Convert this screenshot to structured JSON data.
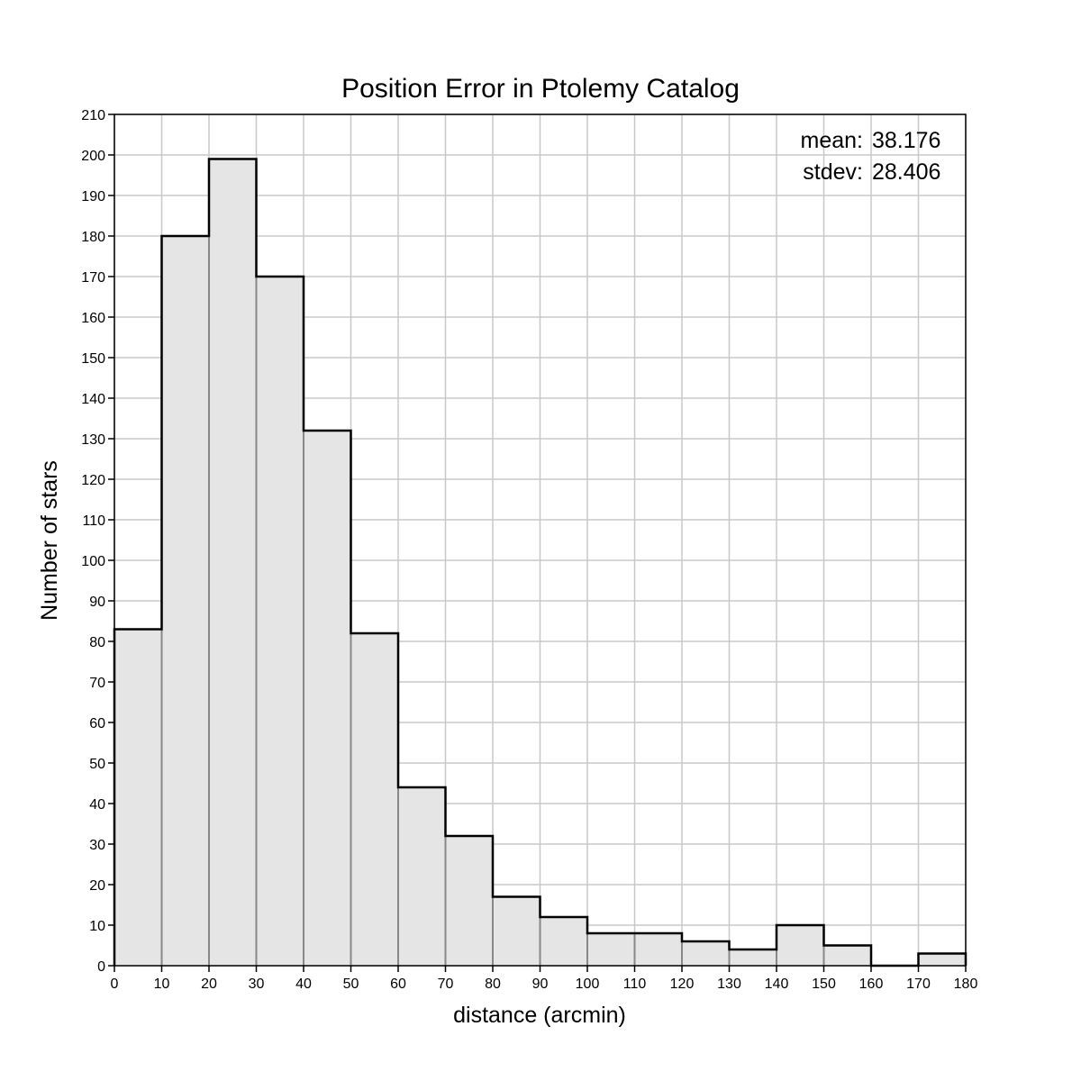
{
  "chart_data": {
    "type": "bar",
    "title": "Position Error in Ptolemy Catalog",
    "xlabel": "distance (arcmin)",
    "ylabel": "Number of stars",
    "xlim": [
      0,
      180
    ],
    "ylim": [
      0,
      210
    ],
    "bin_width": 10,
    "bins": [
      0,
      10,
      20,
      30,
      40,
      50,
      60,
      70,
      80,
      90,
      100,
      110,
      120,
      130,
      140,
      150,
      160,
      170
    ],
    "values": [
      83,
      180,
      199,
      170,
      132,
      82,
      44,
      32,
      17,
      12,
      8,
      8,
      6,
      4,
      10,
      5,
      0,
      3
    ],
    "x_ticks": [
      "0",
      "10",
      "20",
      "30",
      "40",
      "50",
      "60",
      "70",
      "80",
      "90",
      "100",
      "110",
      "120",
      "130",
      "140",
      "150",
      "160",
      "170",
      "180"
    ],
    "y_ticks": [
      "0",
      "10",
      "20",
      "30",
      "40",
      "50",
      "60",
      "70",
      "80",
      "90",
      "100",
      "110",
      "120",
      "130",
      "140",
      "150",
      "160",
      "170",
      "180",
      "190",
      "200",
      "210"
    ],
    "grid": true,
    "legend": "none",
    "annotations": {
      "mean_label": "mean:",
      "mean_value": "38.176",
      "stdev_label": "stdev:",
      "stdev_value": "28.406"
    },
    "colors": {
      "bar_fill": "#e5e5e5",
      "bar_stroke": "#000000",
      "grid": "#c8c8c8",
      "inner_edge": "#888888"
    }
  }
}
